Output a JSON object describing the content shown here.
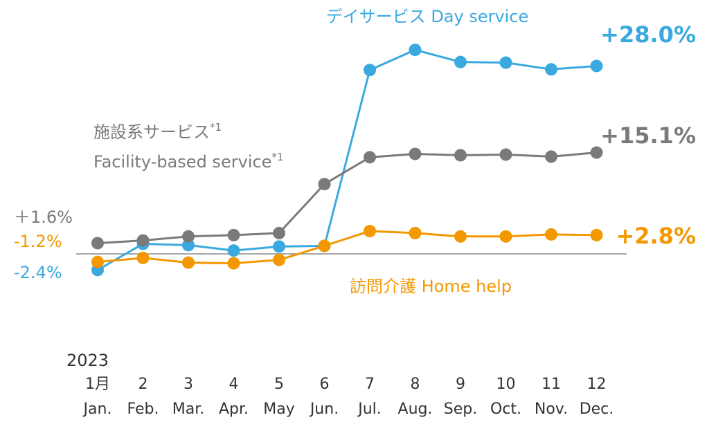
{
  "chart_data": {
    "type": "line",
    "year": "2023",
    "categories": [
      "1月",
      "2",
      "3",
      "4",
      "5",
      "6",
      "7",
      "8",
      "9",
      "10",
      "11",
      "12"
    ],
    "categories_en": [
      "Jan.",
      "Feb.",
      "Mar.",
      "Apr.",
      "May",
      "Jun.",
      "Jul.",
      "Aug.",
      "Sep.",
      "Oct.",
      "Nov.",
      "Dec."
    ],
    "ylim": [
      -5,
      31
    ],
    "series": [
      {
        "name": [
          "デイサービス  Day service"
        ],
        "color": "#3aa9e0",
        "start_label": "-2.4%",
        "end_label": "+28.0%",
        "values": [
          -2.4,
          1.5,
          1.3,
          0.5,
          1.1,
          1.2,
          27.4,
          30.4,
          28.6,
          28.5,
          27.5,
          28.0
        ]
      },
      {
        "name": [
          "施設系サービス",
          "Facility-based service"
        ],
        "note": "*1",
        "color": "#7a7a7a",
        "start_label": "＋1.6%",
        "end_label": "+15.1%",
        "values": [
          1.6,
          2.0,
          2.6,
          2.8,
          3.1,
          10.4,
          14.4,
          14.9,
          14.7,
          14.8,
          14.5,
          15.1
        ]
      },
      {
        "name": [
          "訪問介護  Home help"
        ],
        "color": "#f39800",
        "start_label": "-1.2%",
        "end_label": "+2.8%",
        "values": [
          -1.2,
          -0.6,
          -1.3,
          -1.4,
          -0.9,
          1.2,
          3.4,
          3.1,
          2.6,
          2.6,
          2.9,
          2.8
        ]
      }
    ]
  }
}
